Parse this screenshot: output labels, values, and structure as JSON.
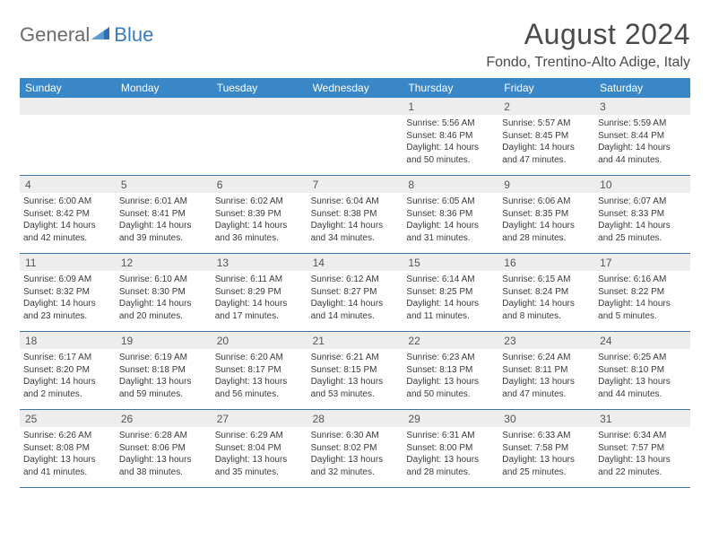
{
  "brand": {
    "part1": "General",
    "part2": "Blue"
  },
  "title": "August 2024",
  "location": "Fondo, Trentino-Alto Adige, Italy",
  "colors": {
    "header_bg": "#3a87c8",
    "header_text": "#ffffff",
    "bar_bg": "#ededed",
    "divider": "#3a74a8",
    "logo_gray": "#6b6b6b",
    "logo_blue": "#3a7abf"
  },
  "dow": [
    "Sunday",
    "Monday",
    "Tuesday",
    "Wednesday",
    "Thursday",
    "Friday",
    "Saturday"
  ],
  "weeks": [
    [
      null,
      null,
      null,
      null,
      {
        "n": "1",
        "sr": "Sunrise: 5:56 AM",
        "ss": "Sunset: 8:46 PM",
        "dl": "Daylight: 14 hours and 50 minutes."
      },
      {
        "n": "2",
        "sr": "Sunrise: 5:57 AM",
        "ss": "Sunset: 8:45 PM",
        "dl": "Daylight: 14 hours and 47 minutes."
      },
      {
        "n": "3",
        "sr": "Sunrise: 5:59 AM",
        "ss": "Sunset: 8:44 PM",
        "dl": "Daylight: 14 hours and 44 minutes."
      }
    ],
    [
      {
        "n": "4",
        "sr": "Sunrise: 6:00 AM",
        "ss": "Sunset: 8:42 PM",
        "dl": "Daylight: 14 hours and 42 minutes."
      },
      {
        "n": "5",
        "sr": "Sunrise: 6:01 AM",
        "ss": "Sunset: 8:41 PM",
        "dl": "Daylight: 14 hours and 39 minutes."
      },
      {
        "n": "6",
        "sr": "Sunrise: 6:02 AM",
        "ss": "Sunset: 8:39 PM",
        "dl": "Daylight: 14 hours and 36 minutes."
      },
      {
        "n": "7",
        "sr": "Sunrise: 6:04 AM",
        "ss": "Sunset: 8:38 PM",
        "dl": "Daylight: 14 hours and 34 minutes."
      },
      {
        "n": "8",
        "sr": "Sunrise: 6:05 AM",
        "ss": "Sunset: 8:36 PM",
        "dl": "Daylight: 14 hours and 31 minutes."
      },
      {
        "n": "9",
        "sr": "Sunrise: 6:06 AM",
        "ss": "Sunset: 8:35 PM",
        "dl": "Daylight: 14 hours and 28 minutes."
      },
      {
        "n": "10",
        "sr": "Sunrise: 6:07 AM",
        "ss": "Sunset: 8:33 PM",
        "dl": "Daylight: 14 hours and 25 minutes."
      }
    ],
    [
      {
        "n": "11",
        "sr": "Sunrise: 6:09 AM",
        "ss": "Sunset: 8:32 PM",
        "dl": "Daylight: 14 hours and 23 minutes."
      },
      {
        "n": "12",
        "sr": "Sunrise: 6:10 AM",
        "ss": "Sunset: 8:30 PM",
        "dl": "Daylight: 14 hours and 20 minutes."
      },
      {
        "n": "13",
        "sr": "Sunrise: 6:11 AM",
        "ss": "Sunset: 8:29 PM",
        "dl": "Daylight: 14 hours and 17 minutes."
      },
      {
        "n": "14",
        "sr": "Sunrise: 6:12 AM",
        "ss": "Sunset: 8:27 PM",
        "dl": "Daylight: 14 hours and 14 minutes."
      },
      {
        "n": "15",
        "sr": "Sunrise: 6:14 AM",
        "ss": "Sunset: 8:25 PM",
        "dl": "Daylight: 14 hours and 11 minutes."
      },
      {
        "n": "16",
        "sr": "Sunrise: 6:15 AM",
        "ss": "Sunset: 8:24 PM",
        "dl": "Daylight: 14 hours and 8 minutes."
      },
      {
        "n": "17",
        "sr": "Sunrise: 6:16 AM",
        "ss": "Sunset: 8:22 PM",
        "dl": "Daylight: 14 hours and 5 minutes."
      }
    ],
    [
      {
        "n": "18",
        "sr": "Sunrise: 6:17 AM",
        "ss": "Sunset: 8:20 PM",
        "dl": "Daylight: 14 hours and 2 minutes."
      },
      {
        "n": "19",
        "sr": "Sunrise: 6:19 AM",
        "ss": "Sunset: 8:18 PM",
        "dl": "Daylight: 13 hours and 59 minutes."
      },
      {
        "n": "20",
        "sr": "Sunrise: 6:20 AM",
        "ss": "Sunset: 8:17 PM",
        "dl": "Daylight: 13 hours and 56 minutes."
      },
      {
        "n": "21",
        "sr": "Sunrise: 6:21 AM",
        "ss": "Sunset: 8:15 PM",
        "dl": "Daylight: 13 hours and 53 minutes."
      },
      {
        "n": "22",
        "sr": "Sunrise: 6:23 AM",
        "ss": "Sunset: 8:13 PM",
        "dl": "Daylight: 13 hours and 50 minutes."
      },
      {
        "n": "23",
        "sr": "Sunrise: 6:24 AM",
        "ss": "Sunset: 8:11 PM",
        "dl": "Daylight: 13 hours and 47 minutes."
      },
      {
        "n": "24",
        "sr": "Sunrise: 6:25 AM",
        "ss": "Sunset: 8:10 PM",
        "dl": "Daylight: 13 hours and 44 minutes."
      }
    ],
    [
      {
        "n": "25",
        "sr": "Sunrise: 6:26 AM",
        "ss": "Sunset: 8:08 PM",
        "dl": "Daylight: 13 hours and 41 minutes."
      },
      {
        "n": "26",
        "sr": "Sunrise: 6:28 AM",
        "ss": "Sunset: 8:06 PM",
        "dl": "Daylight: 13 hours and 38 minutes."
      },
      {
        "n": "27",
        "sr": "Sunrise: 6:29 AM",
        "ss": "Sunset: 8:04 PM",
        "dl": "Daylight: 13 hours and 35 minutes."
      },
      {
        "n": "28",
        "sr": "Sunrise: 6:30 AM",
        "ss": "Sunset: 8:02 PM",
        "dl": "Daylight: 13 hours and 32 minutes."
      },
      {
        "n": "29",
        "sr": "Sunrise: 6:31 AM",
        "ss": "Sunset: 8:00 PM",
        "dl": "Daylight: 13 hours and 28 minutes."
      },
      {
        "n": "30",
        "sr": "Sunrise: 6:33 AM",
        "ss": "Sunset: 7:58 PM",
        "dl": "Daylight: 13 hours and 25 minutes."
      },
      {
        "n": "31",
        "sr": "Sunrise: 6:34 AM",
        "ss": "Sunset: 7:57 PM",
        "dl": "Daylight: 13 hours and 22 minutes."
      }
    ]
  ]
}
